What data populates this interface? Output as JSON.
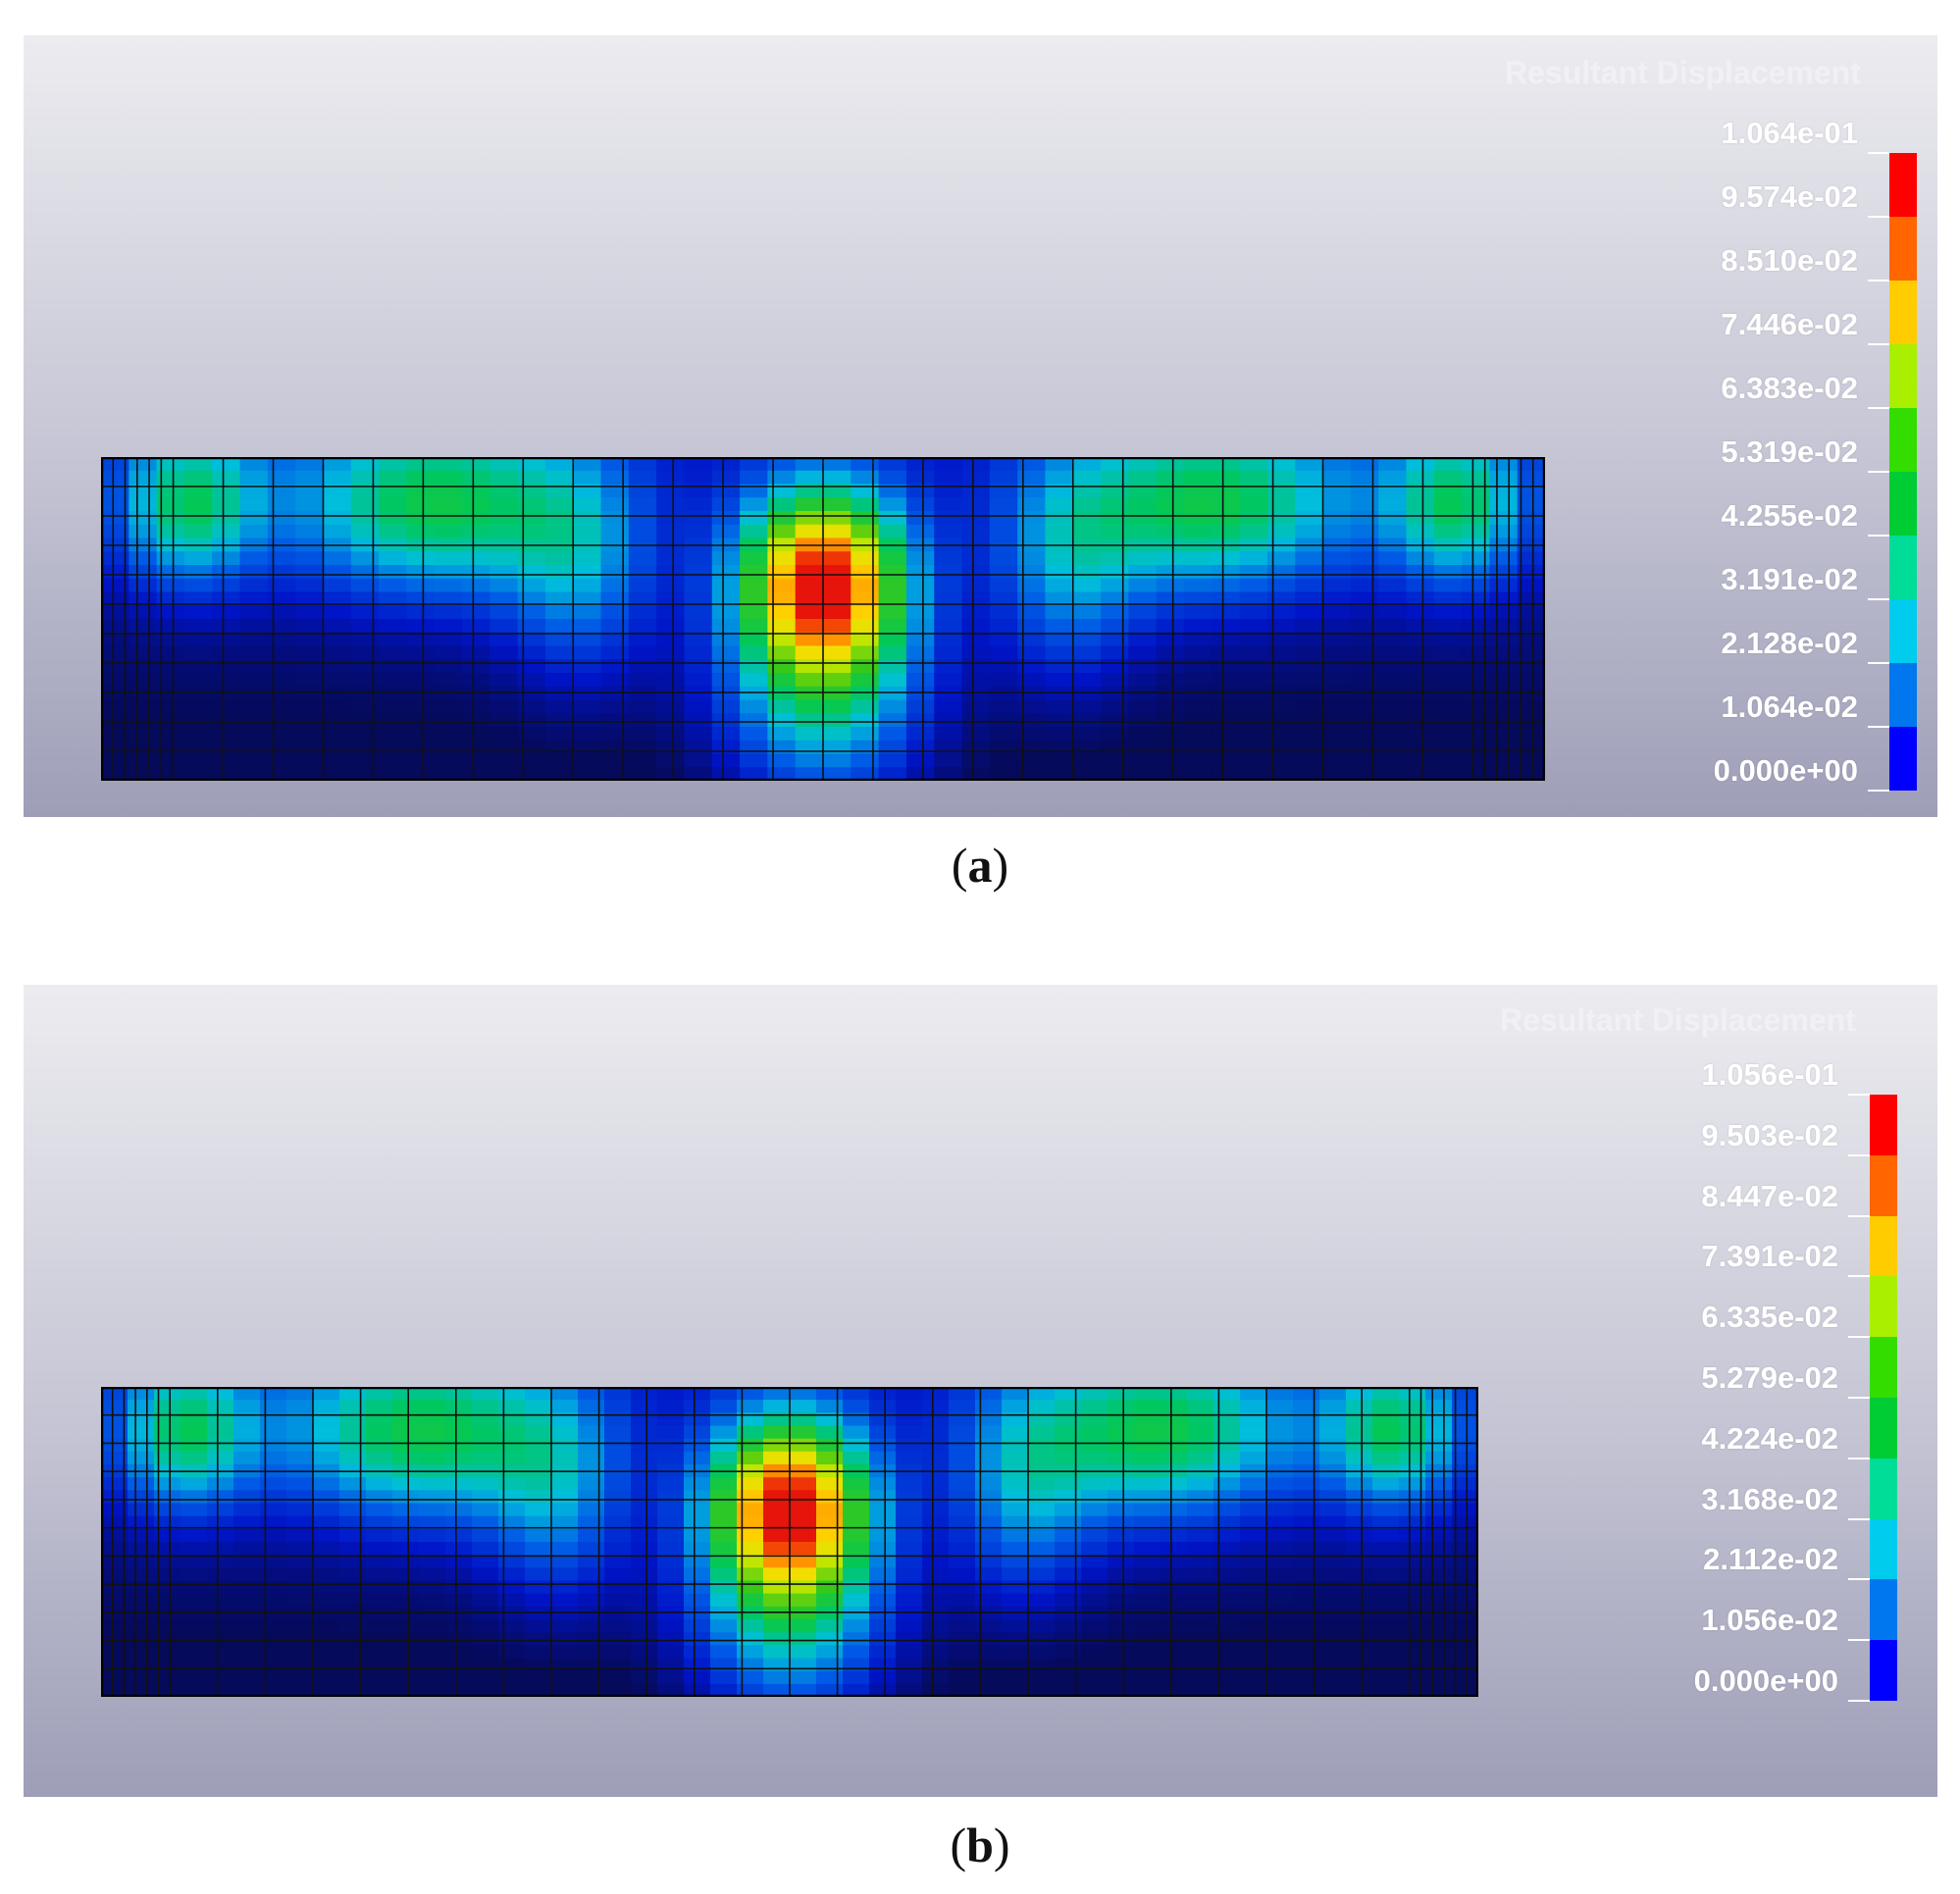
{
  "panels": [
    {
      "id": "a",
      "caption_letter": "a",
      "legend_title": "Resultant Displacement",
      "tick_labels": [
        "1.064e-01",
        "9.574e-02",
        "8.510e-02",
        "7.446e-02",
        "6.383e-02",
        "5.319e-02",
        "4.255e-02",
        "3.191e-02",
        "2.128e-02",
        "1.064e-02",
        "0.000e+00"
      ]
    },
    {
      "id": "b",
      "caption_letter": "b",
      "legend_title": "Resultant Displacement",
      "tick_labels": [
        "1.056e-01",
        "9.503e-02",
        "8.447e-02",
        "7.391e-02",
        "6.335e-02",
        "5.279e-02",
        "4.224e-02",
        "3.168e-02",
        "2.112e-02",
        "1.056e-02",
        "0.000e+00"
      ]
    }
  ],
  "colorbar_colors": [
    "#ff0000",
    "#ff6600",
    "#ffcc00",
    "#aaee00",
    "#33dd00",
    "#00cc33",
    "#00dd99",
    "#00ccee",
    "#0077ee",
    "#0000ff"
  ]
}
